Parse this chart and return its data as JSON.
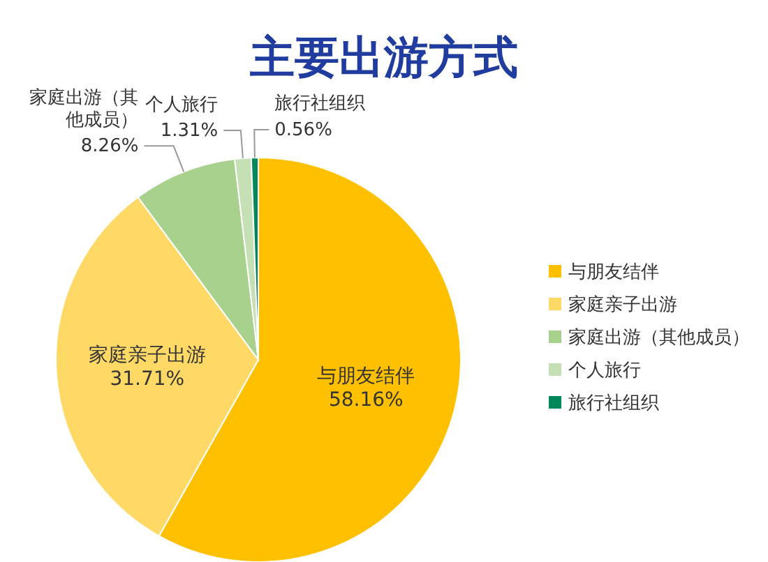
{
  "chart_data": {
    "type": "pie",
    "title": "主要出游方式",
    "categories": [
      "与朋友结伴",
      "家庭亲子出游",
      "家庭出游（其他成员）",
      "个人旅行",
      "旅行社组织"
    ],
    "values": [
      58.16,
      31.71,
      8.26,
      1.31,
      0.56
    ],
    "colors": [
      "#ffc000",
      "#ffd966",
      "#a9d18e",
      "#c5e0b4",
      "#00875a"
    ],
    "value_labels": [
      "58.16%",
      "31.71%",
      "8.26%",
      "1.31%",
      "0.56%"
    ],
    "legend": "right"
  }
}
